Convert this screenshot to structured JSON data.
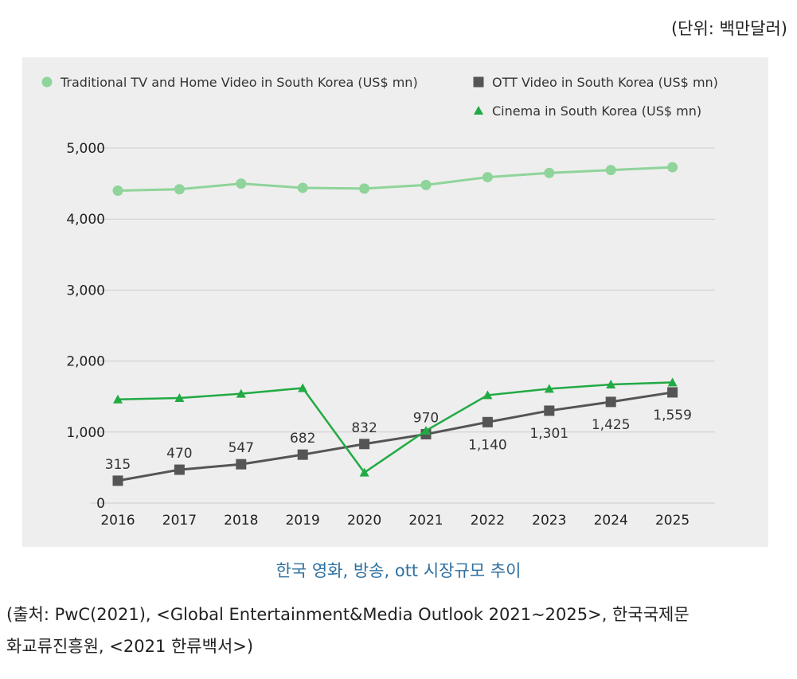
{
  "unit_label": "(단위: 백만달러)",
  "caption": "한국 영화, 방송, ott 시장규모 추이",
  "source_line1": "(출처: PwC(2021), <Global Entertainment&Media Outlook 2021~2025>, 한국국제문",
  "source_line2": "화교류진흥원, <2021 한류백서>)",
  "colors": {
    "tv": "#8fd49a",
    "ott": "#555555",
    "cinema": "#22aa44",
    "grid": "#cccccc"
  },
  "chart_data": {
    "type": "line",
    "title": "",
    "xlabel": "",
    "ylabel": "",
    "x": [
      "2016",
      "2017",
      "2018",
      "2019",
      "2020",
      "2021",
      "2022",
      "2023",
      "2024",
      "2025"
    ],
    "ylim": [
      0,
      5000
    ],
    "yticks": [
      "0",
      "1,000",
      "2,000",
      "3,000",
      "4,000",
      "5,000"
    ],
    "ytick_values": [
      0,
      1000,
      2000,
      3000,
      4000,
      5000
    ],
    "grid": true,
    "legend_position": "top",
    "series": [
      {
        "name": "Traditional TV and Home Video in South Korea (US$ mn)",
        "marker": "circle",
        "values": [
          4400,
          4420,
          4500,
          4440,
          4430,
          4480,
          4590,
          4650,
          4690,
          4730
        ]
      },
      {
        "name": "OTT Video in South Korea (US$ mn)",
        "marker": "square",
        "values": [
          315,
          470,
          547,
          682,
          832,
          970,
          1140,
          1301,
          1425,
          1559
        ],
        "labels": [
          "315",
          "470",
          "547",
          "682",
          "832",
          "970",
          "1,140",
          "1,301",
          "1,425",
          "1,559"
        ]
      },
      {
        "name": "Cinema in South Korea (US$ mn)",
        "marker": "triangle",
        "values": [
          1460,
          1480,
          1540,
          1620,
          430,
          1020,
          1520,
          1610,
          1670,
          1700
        ]
      }
    ]
  }
}
